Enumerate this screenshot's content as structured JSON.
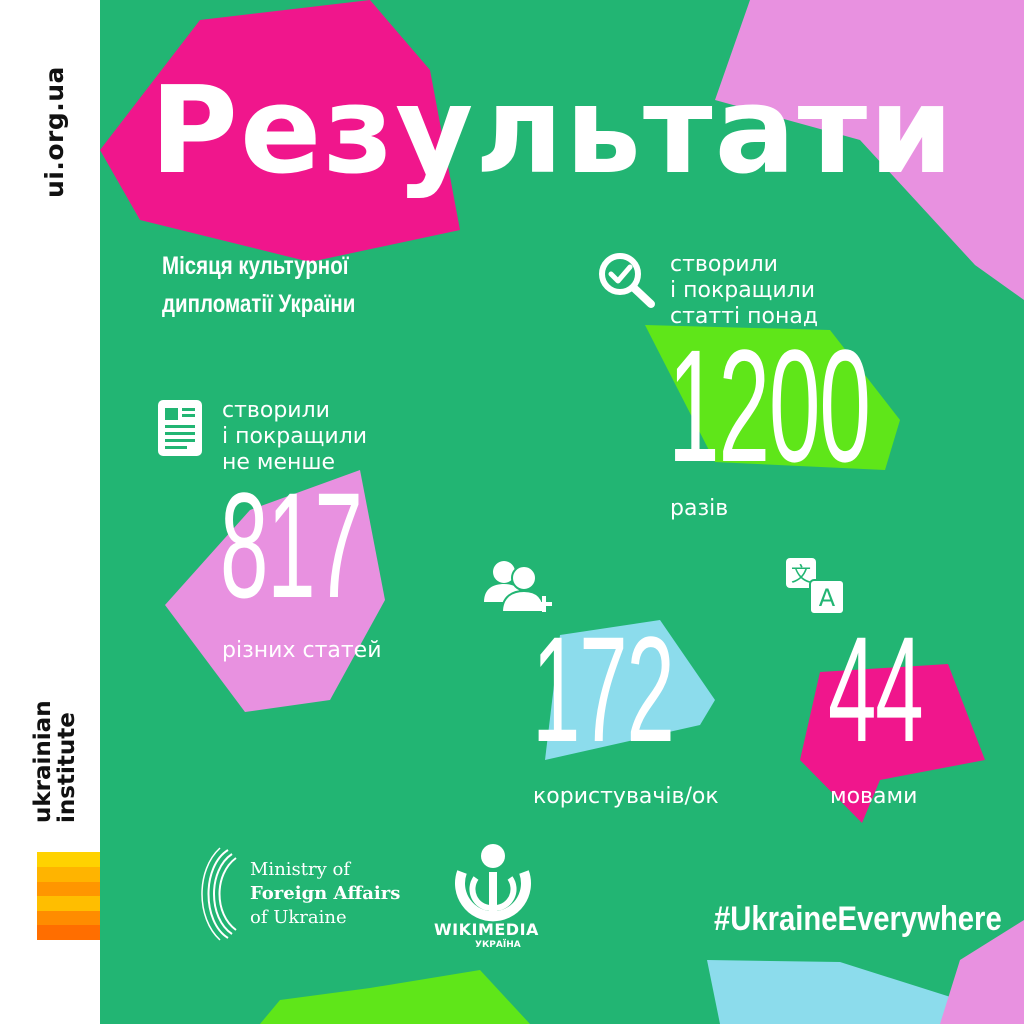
{
  "sidebar": {
    "site_url": "ui.org.ua",
    "brand_line1": "ukrainian",
    "brand_line2": "institute"
  },
  "header": {
    "title": "Результати",
    "subtitle_line1": "Місяця культурної",
    "subtitle_line2": "дипломатії України"
  },
  "stats": {
    "articles": {
      "caption": [
        "створили",
        "і покращили",
        "не менше"
      ],
      "value": "817",
      "label": "різних статей",
      "icon": "article-icon"
    },
    "edits": {
      "caption": [
        "створили",
        "і покращили",
        "статті понад"
      ],
      "value": "1200",
      "label": "разів",
      "icon": "search-check-icon"
    },
    "users": {
      "value": "172",
      "label": "користувачів/ок",
      "icon": "users-add-icon"
    },
    "languages": {
      "value": "44",
      "label": "мовами",
      "icon": "translate-icon",
      "glyph_a": "文",
      "glyph_b": "A"
    }
  },
  "footer": {
    "mfa_line1": "Ministry of",
    "mfa_line2": "Foreign Affairs",
    "mfa_line3": "of Ukraine",
    "wiki_name": "WIKIMEDIA",
    "wiki_sub": "УКРАЇНА",
    "hashtag": "#UkraineEverywhere"
  },
  "colors": {
    "background": "#22b573",
    "pink": "#f0168c",
    "lilac": "#e891e0",
    "lime": "#5fe619",
    "light_blue": "#8cdcec",
    "text": "#ffffff"
  }
}
